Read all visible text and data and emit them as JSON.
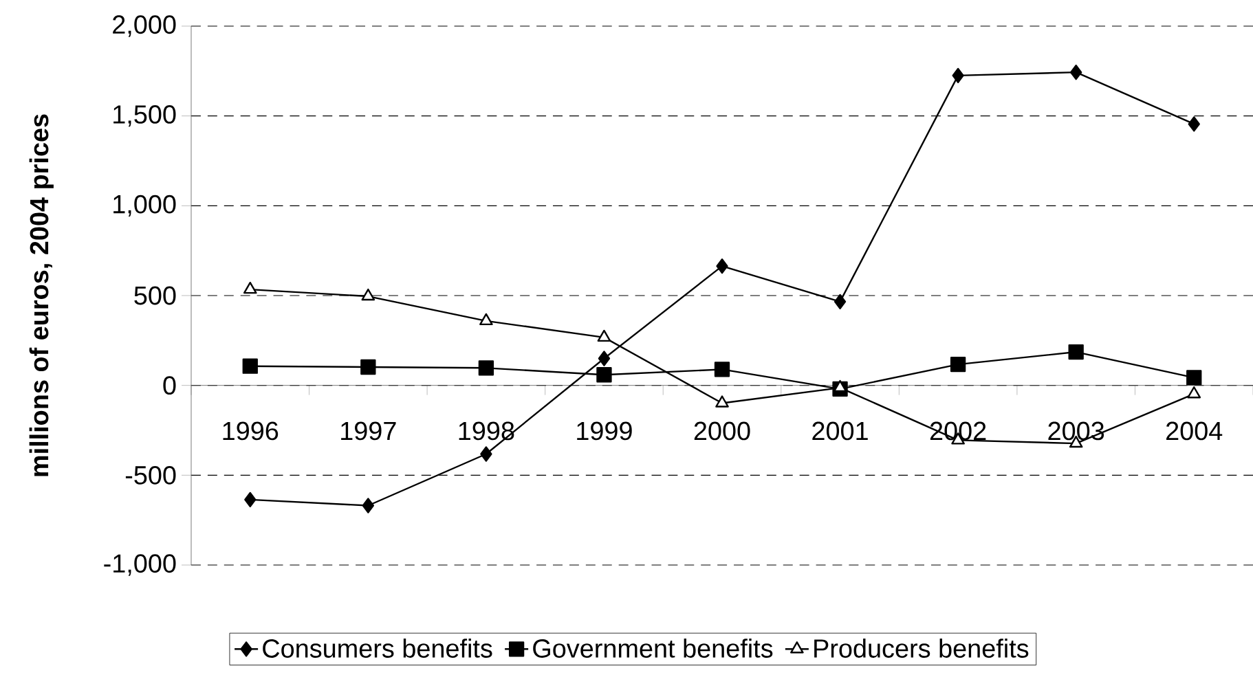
{
  "chart_data": {
    "type": "line",
    "ylabel": "millions of euros, 2004 prices",
    "categories": [
      "1996",
      "1997",
      "1998",
      "1999",
      "2000",
      "2001",
      "2002",
      "2003",
      "2004"
    ],
    "series": [
      {
        "name": "Consumers benefits",
        "color": "#000000",
        "marker": "diamond",
        "values": [
          -636,
          -669,
          -382,
          150,
          664,
          466,
          1725,
          1743,
          1455
        ]
      },
      {
        "name": "Government benefits",
        "color": "#000000",
        "marker": "square",
        "values": [
          107,
          102,
          97,
          59,
          89,
          -20,
          117,
          186,
          43
        ]
      },
      {
        "name": "Producers benefits",
        "color": "#000000",
        "marker": "triangle",
        "values": [
          534,
          496,
          359,
          267,
          -99,
          -13,
          -305,
          -323,
          -48
        ]
      }
    ],
    "ylim": [
      -1000,
      2000
    ],
    "yticks": [
      {
        "value": -1000,
        "label": "-1,000"
      },
      -500,
      0,
      500,
      {
        "value": 1000,
        "label": "1,000"
      },
      {
        "value": 1500,
        "label": "1,500"
      },
      {
        "value": 2000,
        "label": "2,000"
      }
    ],
    "grid": "y",
    "legend": "bottom",
    "line_style": "solid"
  }
}
